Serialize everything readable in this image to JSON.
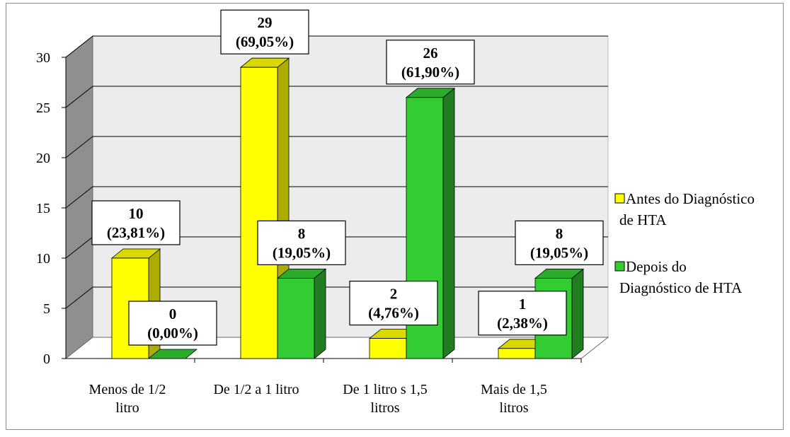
{
  "chart_data": {
    "type": "bar",
    "title": "",
    "xlabel": "",
    "ylabel": "",
    "ylim": [
      0,
      30
    ],
    "yticks": [
      0,
      5,
      10,
      15,
      20,
      25,
      30
    ],
    "grid": true,
    "legend_position": "right",
    "categories": [
      [
        "Menos de 1/2",
        "litro"
      ],
      [
        "De 1/2 a 1 litro"
      ],
      [
        "De 1 litro s 1,5",
        "litros"
      ],
      [
        "Mais de 1,5",
        "litros"
      ]
    ],
    "series": [
      {
        "name": [
          "Antes do Diagnóstico",
          "de HTA"
        ],
        "color": "#ffff00",
        "values": [
          10,
          29,
          2,
          1
        ],
        "labels": [
          [
            "10",
            "(23,81%)"
          ],
          [
            "29",
            "(69,05%)"
          ],
          [
            "2",
            "(4,76%)"
          ],
          [
            "1",
            "(2,38%)"
          ]
        ]
      },
      {
        "name": [
          "Depois do",
          "Diagnóstico de HTA"
        ],
        "color": "#33cc33",
        "values": [
          0,
          8,
          26,
          8
        ],
        "labels": [
          [
            "0",
            "(0,00%)"
          ],
          [
            "8",
            "(19,05%)"
          ],
          [
            "26",
            "(61,90%)"
          ],
          [
            "8",
            "(19,05%)"
          ]
        ]
      }
    ]
  }
}
